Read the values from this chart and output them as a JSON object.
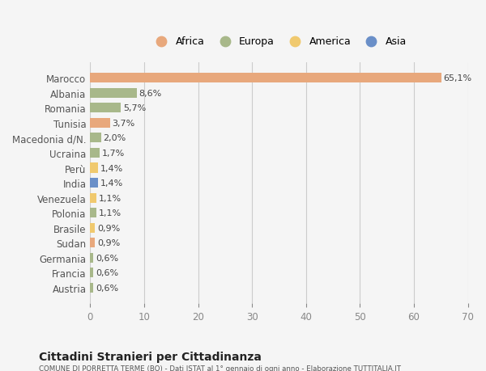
{
  "countries": [
    "Marocco",
    "Albania",
    "Romania",
    "Tunisia",
    "Macedonia d/N.",
    "Ucraina",
    "Perù",
    "India",
    "Venezuela",
    "Polonia",
    "Brasile",
    "Sudan",
    "Germania",
    "Francia",
    "Austria"
  ],
  "values": [
    65.1,
    8.6,
    5.7,
    3.7,
    2.0,
    1.7,
    1.4,
    1.4,
    1.1,
    1.1,
    0.9,
    0.9,
    0.6,
    0.6,
    0.6
  ],
  "labels": [
    "65,1%",
    "8,6%",
    "5,7%",
    "3,7%",
    "2,0%",
    "1,7%",
    "1,4%",
    "1,4%",
    "1,1%",
    "1,1%",
    "0,9%",
    "0,9%",
    "0,6%",
    "0,6%",
    "0,6%"
  ],
  "regions": [
    "Africa",
    "Europa",
    "Europa",
    "Africa",
    "Europa",
    "Europa",
    "America",
    "Asia",
    "America",
    "Europa",
    "America",
    "Africa",
    "Europa",
    "Europa",
    "Europa"
  ],
  "region_colors": {
    "Africa": "#E8A87C",
    "Europa": "#A8B88A",
    "America": "#F0C96E",
    "Asia": "#6A8FC8"
  },
  "legend_order": [
    "Africa",
    "Europa",
    "America",
    "Asia"
  ],
  "background_color": "#f5f5f5",
  "title": "Cittadini Stranieri per Cittadinanza",
  "subtitle": "COMUNE DI PORRETTA TERME (BO) - Dati ISTAT al 1° gennaio di ogni anno - Elaborazione TUTTITALIA.IT",
  "xlim": [
    0,
    70
  ],
  "xticks": [
    0,
    10,
    20,
    30,
    40,
    50,
    60,
    70
  ]
}
